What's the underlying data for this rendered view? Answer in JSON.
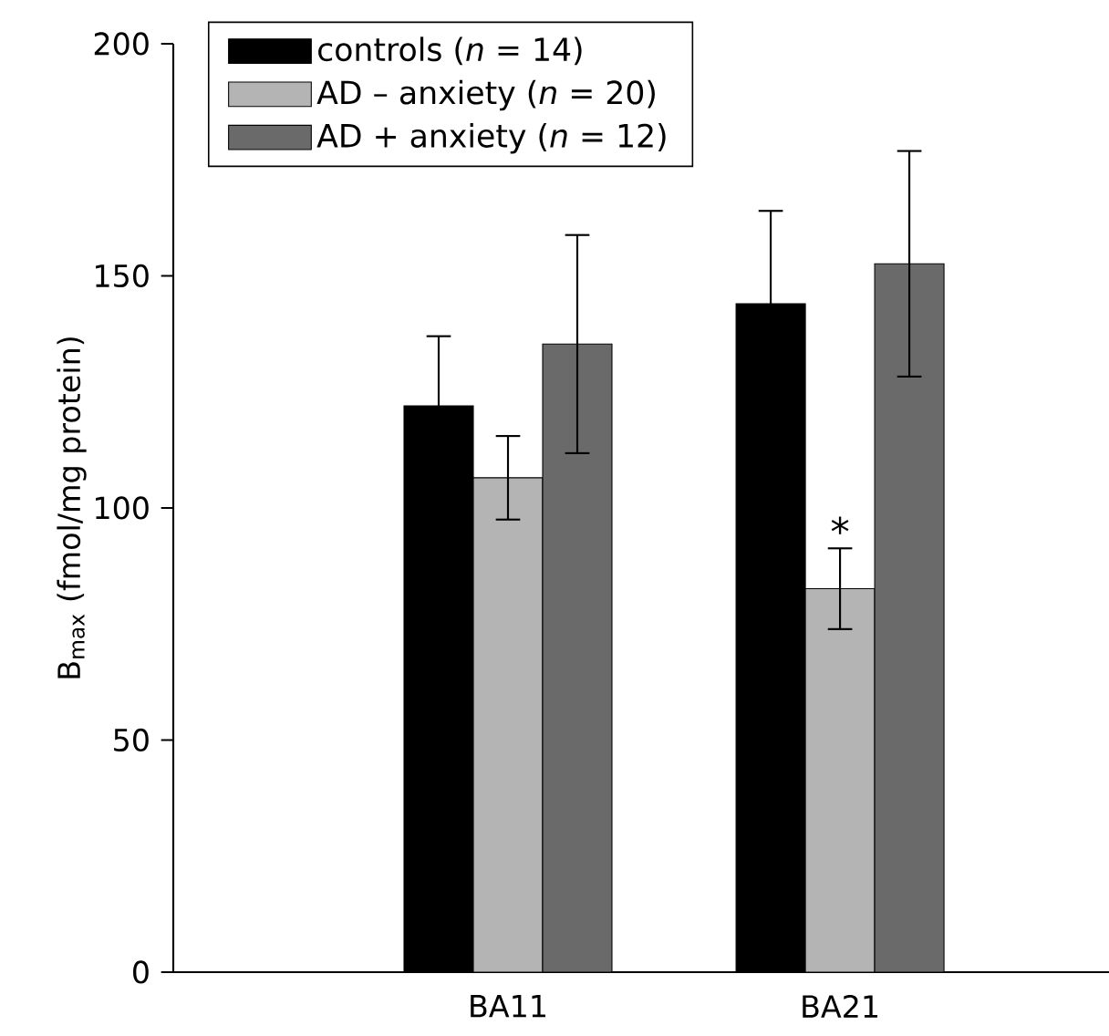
{
  "chart_data": {
    "type": "bar",
    "ylabel": "B$_{max}$ (fmol/mg protein)",
    "categories": [
      "BA11",
      "BA21"
    ],
    "ylim": [
      0,
      200
    ],
    "yticks": [
      0,
      50,
      100,
      150,
      200
    ],
    "legend": "top left",
    "grid": false,
    "series": [
      {
        "name": "controls (*n* = 14)",
        "color": "#000000",
        "values": [
          122,
          144
        ],
        "errors": [
          15,
          20
        ]
      },
      {
        "name": "AD – anxiety (*n* = 20)",
        "color": "#b4b4b4",
        "values": [
          106.5,
          82.6
        ],
        "errors": [
          9,
          8.7
        ]
      },
      {
        "name": "AD + anxiety (*n* = 12)",
        "color": "#6a6a6a",
        "values": [
          135.3,
          152.6
        ],
        "errors": [
          23.5,
          24.3
        ]
      }
    ],
    "annotations": [
      {
        "text": "*",
        "x": "BA21",
        "y": 82.6
      }
    ]
  }
}
